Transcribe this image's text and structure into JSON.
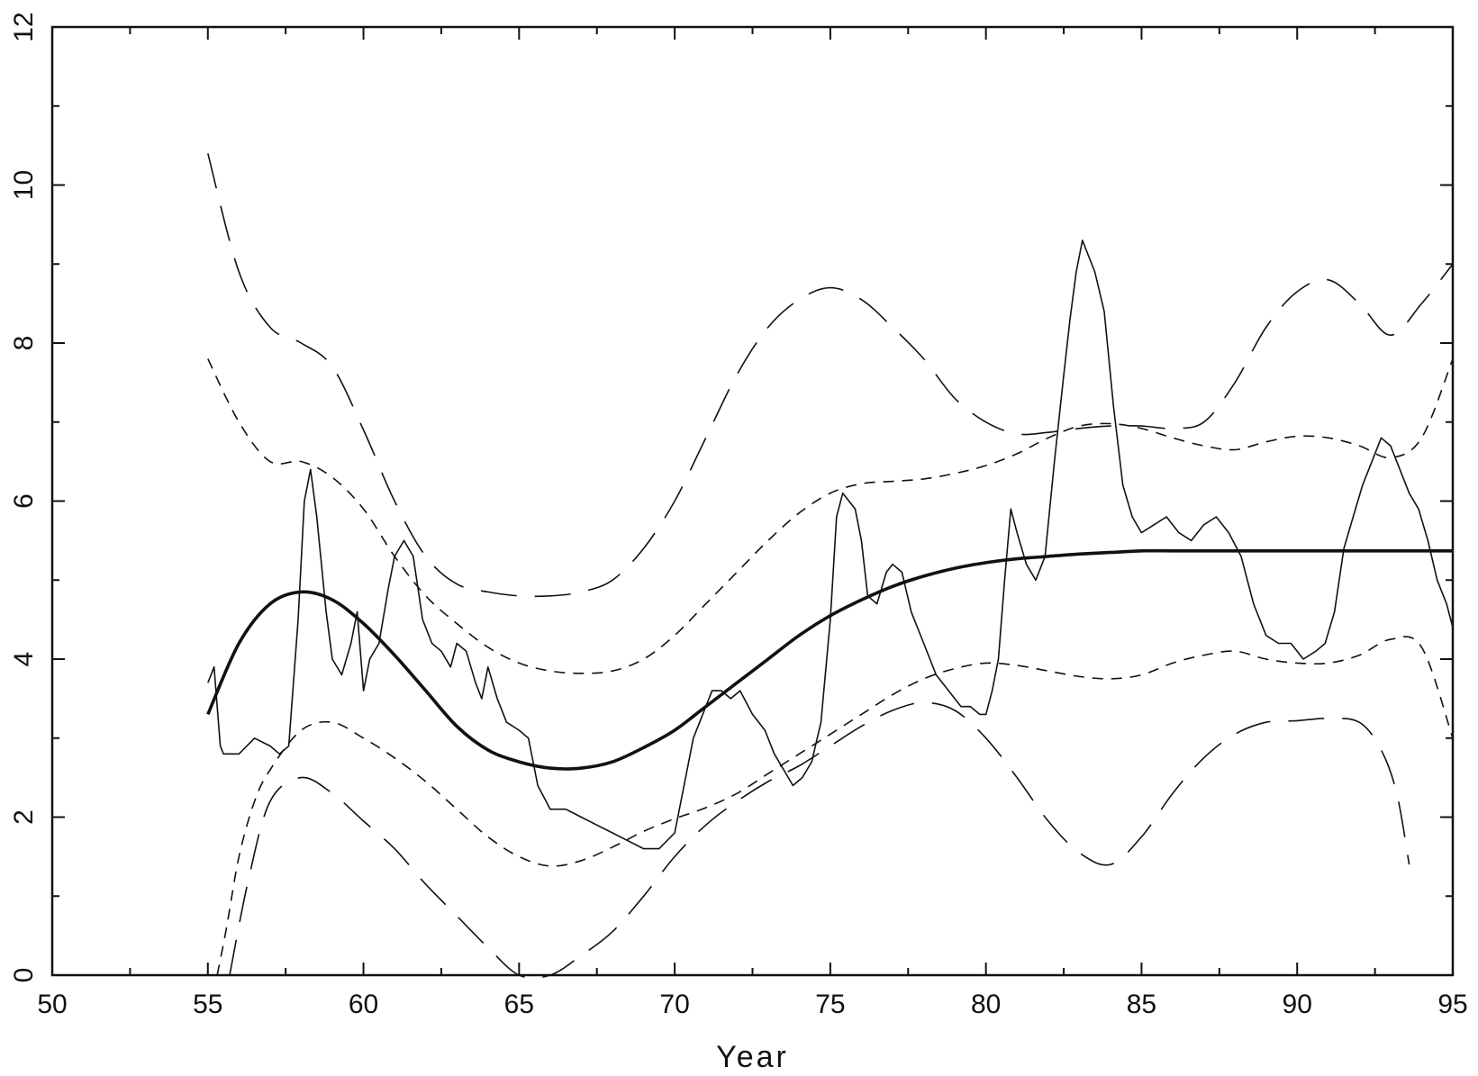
{
  "chart_data": {
    "type": "line",
    "title": "",
    "xlabel": "Year",
    "ylabel": "",
    "xlim": [
      50,
      95
    ],
    "ylim": [
      0,
      12
    ],
    "x_ticks": [
      50,
      55,
      60,
      65,
      70,
      75,
      80,
      85,
      90,
      95
    ],
    "x_tick_labels": [
      "50",
      "55",
      "60",
      "65",
      "70",
      "75",
      "80",
      "85",
      "90",
      "95"
    ],
    "y_ticks": [
      0,
      2,
      4,
      6,
      8,
      10,
      12
    ],
    "y_tick_labels": [
      "0",
      "2",
      "4",
      "6",
      "8",
      "10",
      "12"
    ],
    "grid": false,
    "legend": "none",
    "series": [
      {
        "style": "thin-solid",
        "x": [
          55.0,
          55.2,
          55.4,
          55.5,
          56.0,
          56.5,
          57.0,
          57.3,
          57.6,
          57.9,
          58.1,
          58.3,
          58.5,
          58.8,
          59.0,
          59.3,
          59.6,
          59.8,
          60.0,
          60.2,
          60.5,
          60.8,
          61.0,
          61.3,
          61.6,
          61.9,
          62.2,
          62.5,
          62.8,
          63.0,
          63.3,
          63.6,
          63.8,
          64.0,
          64.3,
          64.6,
          65.0,
          65.3,
          65.6,
          66.0,
          66.5,
          67.0,
          67.5,
          68.0,
          68.5,
          69.0,
          69.5,
          70.0,
          70.3,
          70.6,
          70.9,
          71.2,
          71.5,
          71.8,
          72.1,
          72.5,
          72.9,
          73.2,
          73.5,
          73.8,
          74.1,
          74.4,
          74.7,
          75.0,
          75.2,
          75.4,
          75.6,
          75.8,
          76.0,
          76.2,
          76.5,
          76.8,
          77.0,
          77.3,
          77.6,
          78.0,
          78.4,
          78.8,
          79.2,
          79.5,
          79.8,
          80.0,
          80.2,
          80.4,
          80.6,
          80.8,
          81.0,
          81.3,
          81.6,
          81.9,
          82.2,
          82.5,
          82.7,
          82.9,
          83.1,
          83.3,
          83.5,
          83.8,
          84.1,
          84.4,
          84.7,
          85.0,
          85.4,
          85.8,
          86.2,
          86.6,
          87.0,
          87.4,
          87.8,
          88.2,
          88.6,
          89.0,
          89.4,
          89.8,
          90.2,
          90.6,
          90.9,
          91.2,
          91.5,
          91.8,
          92.1,
          92.4,
          92.7,
          93.0,
          93.3,
          93.6,
          93.9,
          94.2,
          94.5,
          94.8,
          95.0
        ],
        "y": [
          3.7,
          3.9,
          2.9,
          2.8,
          2.8,
          3.0,
          2.9,
          2.8,
          2.9,
          4.5,
          6.0,
          6.4,
          5.8,
          4.6,
          4.0,
          3.8,
          4.2,
          4.6,
          3.6,
          4.0,
          4.2,
          4.9,
          5.3,
          5.5,
          5.3,
          4.5,
          4.2,
          4.1,
          3.9,
          4.2,
          4.1,
          3.7,
          3.5,
          3.9,
          3.5,
          3.2,
          3.1,
          3.0,
          2.4,
          2.1,
          2.1,
          2.0,
          1.9,
          1.8,
          1.7,
          1.6,
          1.6,
          1.8,
          2.4,
          3.0,
          3.3,
          3.6,
          3.6,
          3.5,
          3.6,
          3.3,
          3.1,
          2.8,
          2.6,
          2.4,
          2.5,
          2.7,
          3.2,
          4.5,
          5.8,
          6.1,
          6.0,
          5.9,
          5.5,
          4.8,
          4.7,
          5.1,
          5.2,
          5.1,
          4.6,
          4.2,
          3.8,
          3.6,
          3.4,
          3.4,
          3.3,
          3.3,
          3.6,
          4.0,
          5.0,
          5.9,
          5.6,
          5.2,
          5.0,
          5.3,
          6.5,
          7.6,
          8.3,
          8.9,
          9.3,
          9.1,
          8.9,
          8.4,
          7.2,
          6.2,
          5.8,
          5.6,
          5.7,
          5.8,
          5.6,
          5.5,
          5.7,
          5.8,
          5.6,
          5.3,
          4.7,
          4.3,
          4.2,
          4.2,
          4.0,
          4.1,
          4.2,
          4.6,
          5.4,
          5.8,
          6.2,
          6.5,
          6.8,
          6.7,
          6.4,
          6.1,
          5.9,
          5.5,
          5.0,
          4.7,
          4.4
        ]
      },
      {
        "style": "thick-solid",
        "x": [
          55,
          56,
          57,
          58,
          59,
          60,
          61,
          62,
          63,
          64,
          65,
          66,
          67,
          68,
          69,
          70,
          71,
          72,
          73,
          74,
          75,
          76,
          77,
          78,
          79,
          80,
          81,
          82,
          83,
          84,
          85,
          86,
          87,
          88,
          89,
          90,
          91,
          92,
          93,
          94,
          95
        ],
        "y": [
          3.3,
          4.2,
          4.7,
          4.85,
          4.75,
          4.45,
          4.05,
          3.6,
          3.15,
          2.85,
          2.7,
          2.62,
          2.62,
          2.7,
          2.88,
          3.1,
          3.4,
          3.7,
          4.0,
          4.3,
          4.55,
          4.75,
          4.92,
          5.05,
          5.15,
          5.22,
          5.27,
          5.3,
          5.33,
          5.35,
          5.37,
          5.37,
          5.37,
          5.37,
          5.37,
          5.37,
          5.37,
          5.37,
          5.37,
          5.37,
          5.37
        ]
      },
      {
        "style": "short-dash-upper",
        "x": [
          55,
          56,
          57,
          58,
          59,
          60,
          61,
          62,
          63,
          64,
          65,
          66,
          67,
          68,
          69,
          70,
          71,
          72,
          73,
          74,
          75,
          76,
          77,
          78,
          79,
          80,
          81,
          82,
          83,
          84,
          85,
          86,
          87,
          88,
          89,
          90,
          91,
          92,
          93,
          94,
          95
        ],
        "y": [
          7.8,
          7.0,
          6.5,
          6.5,
          6.3,
          5.9,
          5.3,
          4.8,
          4.45,
          4.15,
          3.95,
          3.85,
          3.82,
          3.85,
          4.0,
          4.3,
          4.7,
          5.1,
          5.5,
          5.85,
          6.1,
          6.22,
          6.25,
          6.28,
          6.35,
          6.45,
          6.6,
          6.8,
          6.95,
          6.98,
          6.92,
          6.8,
          6.7,
          6.65,
          6.75,
          6.82,
          6.8,
          6.7,
          6.55,
          6.8,
          7.8
        ]
      },
      {
        "style": "short-dash-lower",
        "x": [
          55.3,
          55.6,
          56.0,
          56.5,
          57.0,
          58.0,
          59.0,
          60.0,
          61.0,
          62.0,
          63.0,
          64.0,
          65.0,
          66.0,
          67.0,
          68.0,
          69.0,
          70.0,
          71.0,
          72.0,
          73.0,
          74.0,
          75.0,
          76.0,
          77.0,
          78.0,
          79.0,
          80.0,
          81.0,
          82.0,
          83.0,
          84.0,
          85.0,
          86.0,
          87.0,
          88.0,
          89.0,
          90.0,
          91.0,
          92.0,
          93.0,
          94.0,
          95.0
        ],
        "y": [
          0.0,
          0.6,
          1.5,
          2.2,
          2.6,
          3.1,
          3.2,
          3.0,
          2.75,
          2.45,
          2.1,
          1.75,
          1.5,
          1.38,
          1.45,
          1.62,
          1.82,
          1.98,
          2.12,
          2.3,
          2.55,
          2.8,
          3.05,
          3.3,
          3.55,
          3.75,
          3.88,
          3.95,
          3.92,
          3.85,
          3.78,
          3.75,
          3.8,
          3.95,
          4.05,
          4.1,
          4.0,
          3.95,
          3.95,
          4.05,
          4.25,
          4.15,
          3.0
        ]
      },
      {
        "style": "long-dash-upper",
        "x": [
          55,
          56,
          57,
          58,
          59,
          60,
          61,
          62,
          63,
          64,
          65,
          66,
          67,
          68,
          69,
          70,
          71,
          72,
          73,
          74,
          75,
          76,
          77,
          78,
          79,
          80,
          81,
          82,
          83,
          84,
          85,
          86,
          87,
          88,
          89,
          90,
          91,
          92,
          93,
          94,
          95
        ],
        "y": [
          10.4,
          8.9,
          8.2,
          8.0,
          7.7,
          6.9,
          6.0,
          5.3,
          4.95,
          4.85,
          4.8,
          4.8,
          4.85,
          5.0,
          5.4,
          6.0,
          6.8,
          7.6,
          8.2,
          8.55,
          8.7,
          8.55,
          8.2,
          7.8,
          7.3,
          7.0,
          6.85,
          6.87,
          6.92,
          6.95,
          6.95,
          6.92,
          7.0,
          7.5,
          8.2,
          8.65,
          8.8,
          8.5,
          8.1,
          8.5,
          9.0
        ]
      },
      {
        "style": "long-dash-lower",
        "x": [
          55.7,
          56.3,
          57.0,
          58.0,
          59.0,
          60.0,
          61.0,
          62.0,
          63.0,
          64.0,
          65.0,
          66.0,
          67.0,
          68.0,
          69.0,
          70.0,
          71.0,
          72.0,
          73.0,
          74.0,
          75.0,
          76.0,
          77.0,
          78.0,
          79.0,
          80.0,
          81.0,
          82.0,
          83.0,
          84.0,
          85.0,
          86.0,
          87.0,
          88.0,
          89.0,
          90.0,
          91.0,
          92.0,
          92.7,
          93.2,
          93.6
        ],
        "y": [
          0.0,
          1.2,
          2.2,
          2.5,
          2.3,
          1.95,
          1.6,
          1.15,
          0.75,
          0.35,
          0.0,
          0.0,
          0.25,
          0.55,
          1.0,
          1.5,
          1.9,
          2.2,
          2.45,
          2.65,
          2.9,
          3.15,
          3.35,
          3.45,
          3.35,
          3.0,
          2.5,
          1.95,
          1.55,
          1.4,
          1.75,
          2.3,
          2.75,
          3.05,
          3.2,
          3.22,
          3.25,
          3.2,
          2.85,
          2.3,
          1.4
        ]
      }
    ]
  }
}
